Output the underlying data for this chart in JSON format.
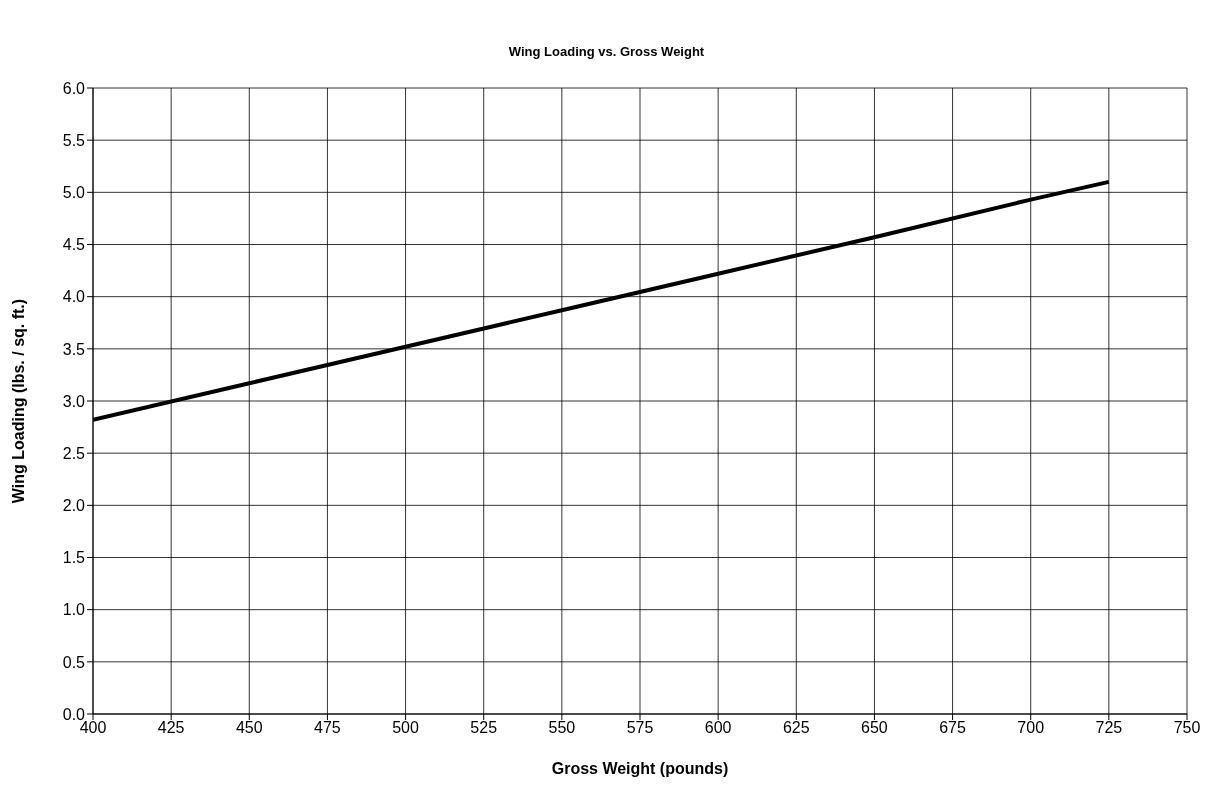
{
  "chart_data": {
    "type": "line",
    "title": "Wing Loading vs. Gross Weight",
    "xlabel": "Gross Weight (pounds)",
    "ylabel": "Wing Loading (lbs. / sq. ft.)",
    "x": [
      400,
      450,
      500,
      550,
      600,
      650,
      700,
      725
    ],
    "series": [
      {
        "color": "#000000",
        "values": [
          2.82,
          3.17,
          3.52,
          3.87,
          4.22,
          4.57,
          4.93,
          5.1
        ]
      }
    ],
    "xlim": [
      400,
      750
    ],
    "xticks": [
      400,
      425,
      450,
      475,
      500,
      525,
      550,
      575,
      600,
      625,
      650,
      675,
      700,
      725,
      750
    ],
    "ylim": [
      0,
      6
    ],
    "yticks": [
      {
        "value": 0,
        "label": "0.0"
      },
      0.5,
      {
        "value": 1,
        "label": "1.0"
      },
      1.5,
      {
        "value": 2,
        "label": "2.0"
      },
      2.5,
      {
        "value": 3,
        "label": "3.0"
      },
      3.5,
      {
        "value": 4,
        "label": "4.0"
      },
      4.5,
      {
        "value": 5,
        "label": "5.0"
      },
      5.5,
      {
        "value": 6,
        "label": "6.0"
      }
    ],
    "grid": true,
    "legend": false,
    "marker": "none",
    "line_style": "solid"
  }
}
